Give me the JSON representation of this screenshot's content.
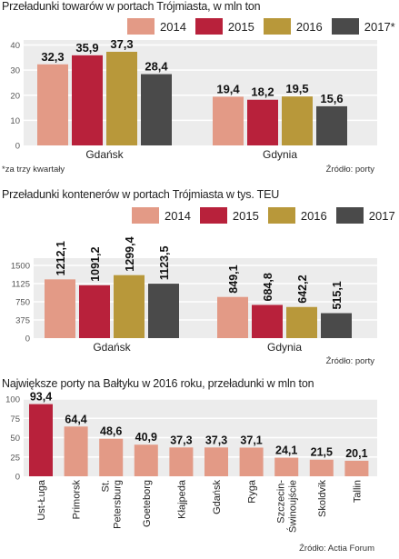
{
  "colors": {
    "c2014": "#e39a86",
    "c2015": "#b8213b",
    "c2016": "#b8983a",
    "c2017": "#4a4a4a",
    "area": "#ececec",
    "grid": "#ffffff",
    "axisText": "#555555"
  },
  "chart_data": [
    {
      "type": "bar",
      "title": "Przeładunki towarów w portach Trójmiasta, w mln ton",
      "categories": [
        "Gdańsk",
        "Gdynia"
      ],
      "series": [
        {
          "name": "2014",
          "values": [
            32.3,
            19.4
          ],
          "labels": [
            "32,3",
            "19,4"
          ]
        },
        {
          "name": "2015",
          "values": [
            35.9,
            18.2
          ],
          "labels": [
            "35,9",
            "18,2"
          ]
        },
        {
          "name": "2016",
          "values": [
            37.3,
            19.5
          ],
          "labels": [
            "37,3",
            "19,5"
          ]
        },
        {
          "name": "2017*",
          "values": [
            28.4,
            15.6
          ],
          "labels": [
            "28,4",
            "15,6"
          ]
        }
      ],
      "yticks": [
        0,
        10,
        20,
        30,
        40
      ],
      "ylim": [
        0,
        42
      ],
      "grid": true,
      "legend": "top-right",
      "footnote": "*za trzy kwartały",
      "source": "Źródło: porty"
    },
    {
      "type": "bar",
      "title": "Przeładunki kontenerów w portach Trójmiasta w tys. TEU",
      "categories": [
        "Gdańsk",
        "Gdynia"
      ],
      "series": [
        {
          "name": "2014",
          "values": [
            1212.1,
            849.1
          ],
          "labels": [
            "1212,1",
            "849,1"
          ]
        },
        {
          "name": "2015",
          "values": [
            1091.2,
            684.8
          ],
          "labels": [
            "1091,2",
            "684,8"
          ]
        },
        {
          "name": "2016",
          "values": [
            1299.4,
            642.2
          ],
          "labels": [
            "1299,4",
            "642,2"
          ]
        },
        {
          "name": "2017",
          "values": [
            1123.5,
            515.1
          ],
          "labels": [
            "1123,5",
            "515,1"
          ]
        }
      ],
      "yticks": [
        0,
        375,
        750,
        1125,
        1500
      ],
      "ylim": [
        0,
        1650
      ],
      "grid": true,
      "legend": "top-right",
      "source": "Źródło: porty"
    },
    {
      "type": "bar",
      "title": "Największe porty na Bałtyku w 2016 roku, przeładunki w mln ton",
      "categories": [
        "Ust-Ługa",
        "Primorsk",
        "St. Petersburg",
        "Goeteborg",
        "Kłajpeda",
        "Gdańsk",
        "Ryga",
        "Szczecin-Świnoujście",
        "Skoldvik",
        "Tallin"
      ],
      "category_lines": [
        [
          "Ust-Ługa"
        ],
        [
          "Primorsk"
        ],
        [
          "St.",
          "Petersburg"
        ],
        [
          "Goeteborg"
        ],
        [
          "Kłajpeda"
        ],
        [
          "Gdańsk"
        ],
        [
          "Ryga"
        ],
        [
          "Szczecin-",
          "Świnoujście"
        ],
        [
          "Skoldvik"
        ],
        [
          "Tallin"
        ]
      ],
      "values": [
        93.4,
        64.4,
        48.6,
        40.9,
        37.3,
        37.3,
        37.1,
        24.1,
        21.5,
        20.1
      ],
      "labels": [
        "93,4",
        "64,4",
        "48,6",
        "40,9",
        "37,3",
        "37,3",
        "37,1",
        "24,1",
        "21,5",
        "20,1"
      ],
      "yticks": [
        0,
        25,
        50,
        75,
        100
      ],
      "ylim": [
        0,
        100
      ],
      "grid": true,
      "source": "Źródło: Actia Forum"
    }
  ]
}
